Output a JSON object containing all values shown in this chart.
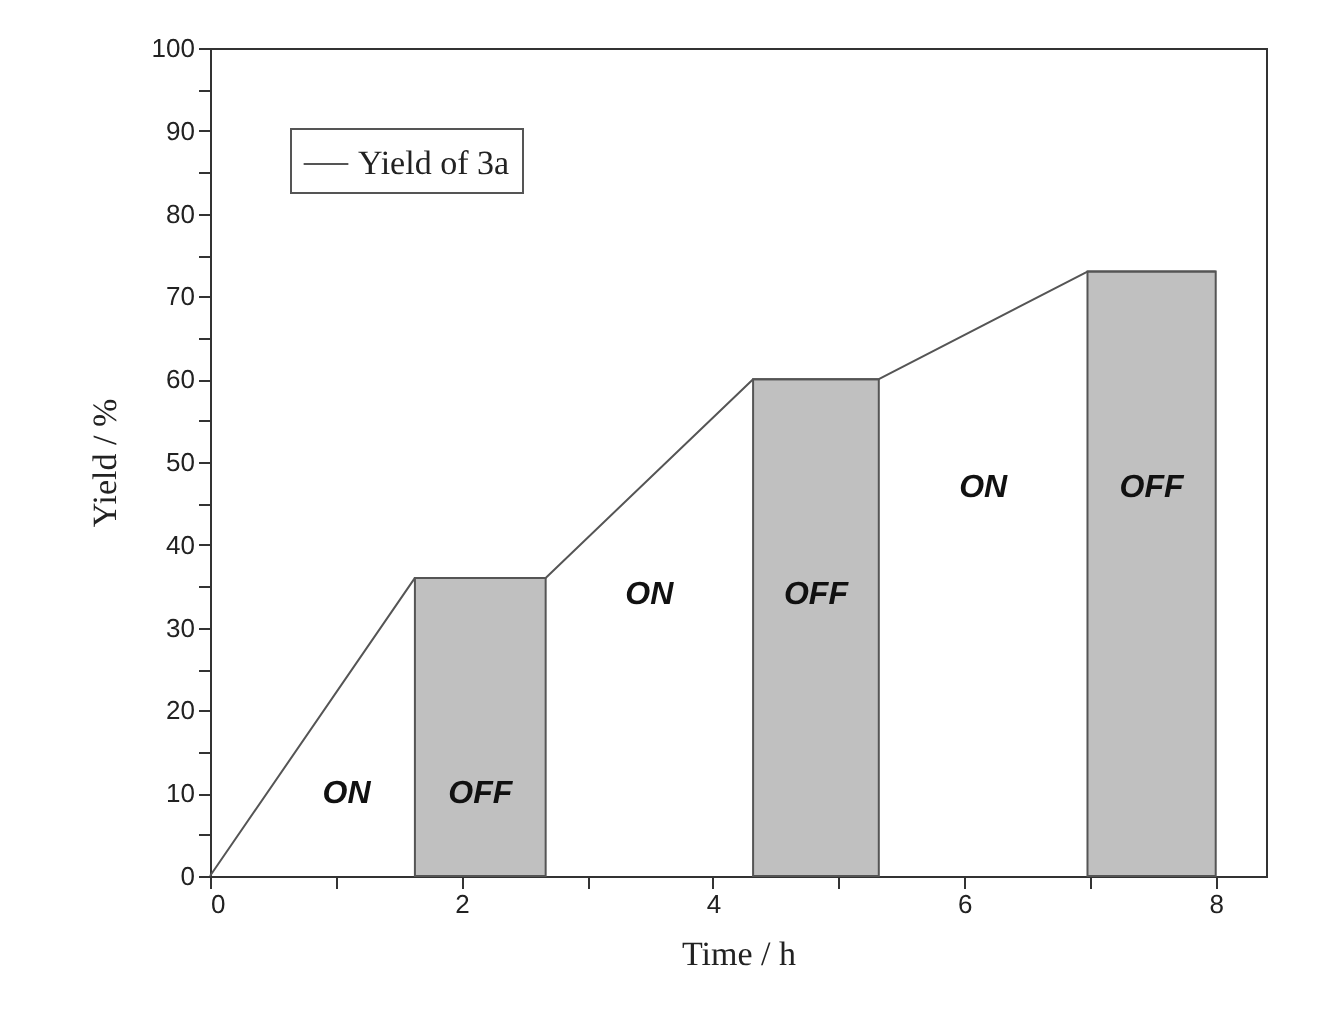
{
  "chart_data": {
    "type": "line",
    "xlabel": "Time / h",
    "ylabel": "Yield / %",
    "series": [
      {
        "name": "Yield of 3a",
        "color": "#555555",
        "x": [
          0,
          1.63,
          2.67,
          4.32,
          5.32,
          6.98,
          8
        ],
        "values": [
          0,
          36,
          36,
          60,
          60,
          73,
          73
        ]
      },
      {
        "type": "area",
        "color": "#c0c0c0",
        "x": [
          1.63,
          2.67
        ],
        "values": [
          36,
          36
        ]
      },
      {
        "type": "area",
        "color": "#c0c0c0",
        "x": [
          4.32,
          5.32
        ],
        "values": [
          60,
          60
        ]
      },
      {
        "type": "area",
        "color": "#c0c0c0",
        "x": [
          6.98,
          8
        ],
        "values": [
          73,
          73
        ]
      }
    ],
    "xlim": [
      0,
      8.4
    ],
    "ylim": [
      0,
      100
    ],
    "xticks": [
      0,
      {
        "value": 1,
        "label": null
      },
      2,
      {
        "value": 3,
        "label": null
      },
      4,
      {
        "value": 5,
        "label": null
      },
      6,
      {
        "value": 7,
        "label": null
      },
      8
    ],
    "yticks": [
      0,
      {
        "value": 5,
        "label": null
      },
      10,
      {
        "value": 15,
        "label": null
      },
      20,
      {
        "value": 25,
        "label": null
      },
      30,
      {
        "value": 35,
        "label": null
      },
      40,
      {
        "value": 45,
        "label": null
      },
      50,
      {
        "value": 55,
        "label": null
      },
      60,
      {
        "value": 65,
        "label": null
      },
      70,
      {
        "value": 75,
        "label": null
      },
      80,
      {
        "value": 85,
        "label": null
      },
      90,
      {
        "value": 95,
        "label": null
      },
      100
    ],
    "annotations": [
      "ON",
      "OFF",
      "ON",
      "OFF",
      "ON",
      "OFF"
    ],
    "legend": "top left",
    "grid": false
  }
}
